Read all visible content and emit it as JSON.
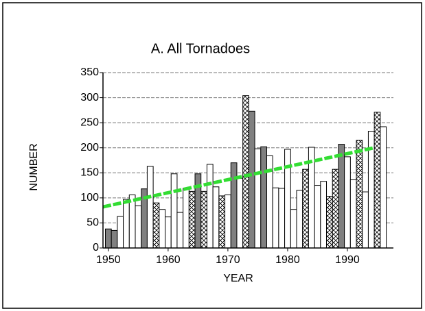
{
  "chart_data": {
    "type": "bar",
    "title": "A. All Tornadoes",
    "x_label": "YEAR",
    "y_label": "NUMBER",
    "x": [
      1950,
      1951,
      1952,
      1953,
      1954,
      1955,
      1956,
      1957,
      1958,
      1959,
      1960,
      1961,
      1962,
      1963,
      1964,
      1965,
      1966,
      1967,
      1968,
      1969,
      1970,
      1971,
      1972,
      1973,
      1974,
      1975,
      1976,
      1977,
      1978,
      1979,
      1980,
      1981,
      1982,
      1983,
      1984,
      1985,
      1986,
      1987,
      1988,
      1989,
      1990,
      1991,
      1992,
      1993,
      1994,
      1995,
      1996
    ],
    "values": [
      38,
      35,
      63,
      97,
      106,
      84,
      118,
      163,
      90,
      77,
      62,
      148,
      71,
      119,
      113,
      148,
      113,
      167,
      122,
      104,
      106,
      170,
      139,
      304,
      273,
      198,
      202,
      184,
      120,
      119,
      197,
      77,
      115,
      157,
      201,
      125,
      133,
      103,
      157,
      207,
      182,
      136,
      215,
      112,
      233,
      271,
      242
    ],
    "bar_styles": [
      "gray",
      "gray",
      "white",
      "white",
      "white",
      "white",
      "gray",
      "white",
      "hatched",
      "white",
      "white",
      "white",
      "white",
      "white",
      "hatched",
      "gray",
      "hatched",
      "white",
      "white",
      "hatched",
      "white",
      "gray",
      "white",
      "hatched",
      "gray",
      "white",
      "gray",
      "white",
      "white",
      "white",
      "white",
      "white",
      "white",
      "hatched",
      "white",
      "white",
      "white",
      "hatched",
      "hatched",
      "gray",
      "white",
      "white",
      "hatched",
      "white",
      "white",
      "hatched",
      "white"
    ],
    "style_colors": {
      "gray": "#808080",
      "white": "#ffffff",
      "hatched": "url(#hatch)"
    },
    "trend": {
      "x": [
        1949.1,
        1994.5
      ],
      "values": [
        82,
        200
      ],
      "color": "#33dd33"
    },
    "xlim": [
      1949.1,
      1997.7
    ],
    "xticks": [
      1950,
      1960,
      1970,
      1980,
      1990
    ],
    "ylim": [
      0,
      350
    ],
    "yticks": [
      0,
      50,
      100,
      150,
      200,
      250,
      300,
      350
    ],
    "grid": true
  }
}
